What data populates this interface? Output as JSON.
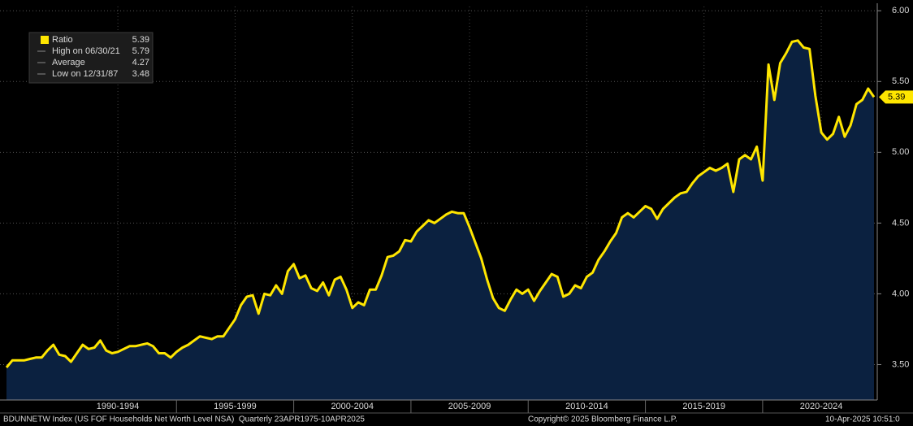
{
  "chart_data": {
    "type": "area",
    "series": [
      {
        "name": "Ratio",
        "color": "#ffe600",
        "values": [
          3.48,
          3.53,
          3.53,
          3.53,
          3.54,
          3.55,
          3.55,
          3.6,
          3.64,
          3.57,
          3.56,
          3.52,
          3.58,
          3.64,
          3.61,
          3.62,
          3.67,
          3.6,
          3.58,
          3.59,
          3.61,
          3.63,
          3.63,
          3.64,
          3.65,
          3.63,
          3.58,
          3.58,
          3.55,
          3.59,
          3.62,
          3.64,
          3.67,
          3.7,
          3.69,
          3.68,
          3.7,
          3.7,
          3.76,
          3.82,
          3.92,
          3.98,
          3.99,
          3.86,
          4.0,
          3.99,
          4.06,
          4.0,
          4.16,
          4.21,
          4.11,
          4.13,
          4.04,
          4.02,
          4.08,
          3.99,
          4.1,
          4.12,
          4.03,
          3.9,
          3.94,
          3.92,
          4.03,
          4.03,
          4.13,
          4.26,
          4.27,
          4.3,
          4.38,
          4.37,
          4.44,
          4.48,
          4.52,
          4.5,
          4.53,
          4.56,
          4.58,
          4.57,
          4.57,
          4.47,
          4.36,
          4.25,
          4.1,
          3.97,
          3.9,
          3.88,
          3.96,
          4.03,
          4.0,
          4.03,
          3.95,
          4.02,
          4.08,
          4.14,
          4.12,
          3.98,
          4.0,
          4.06,
          4.04,
          4.12,
          4.15,
          4.24,
          4.3,
          4.37,
          4.43,
          4.54,
          4.57,
          4.54,
          4.58,
          4.62,
          4.6,
          4.53,
          4.6,
          4.64,
          4.68,
          4.71,
          4.72,
          4.78,
          4.83,
          4.86,
          4.89,
          4.87,
          4.89,
          4.92,
          4.72,
          4.95,
          4.98,
          4.95,
          5.04,
          4.8,
          5.62,
          5.37,
          5.63,
          5.7,
          5.78,
          5.79,
          5.74,
          5.73,
          5.4,
          5.14,
          5.09,
          5.13,
          5.25,
          5.11,
          5.19,
          5.34,
          5.37,
          5.45,
          5.39
        ]
      }
    ],
    "x": [
      1987.75,
      1988,
      1988.25,
      1988.5,
      1988.75,
      1989,
      1989.25,
      1989.5,
      1989.75,
      1990,
      1990.25,
      1990.5,
      1990.75,
      1991,
      1991.25,
      1991.5,
      1991.75,
      1992,
      1992.25,
      1992.5,
      1992.75,
      1993,
      1993.25,
      1993.5,
      1993.75,
      1994,
      1994.25,
      1994.5,
      1994.75,
      1995,
      1995.25,
      1995.5,
      1995.75,
      1996,
      1996.25,
      1996.5,
      1996.75,
      1997,
      1997.25,
      1997.5,
      1997.75,
      1998,
      1998.25,
      1998.5,
      1998.75,
      1999,
      1999.25,
      1999.5,
      1999.75,
      2000,
      2000.25,
      2000.5,
      2000.75,
      2001,
      2001.25,
      2001.5,
      2001.75,
      2002,
      2002.25,
      2002.5,
      2002.75,
      2003,
      2003.25,
      2003.5,
      2003.75,
      2004,
      2004.25,
      2004.5,
      2004.75,
      2005,
      2005.25,
      2005.5,
      2005.75,
      2006,
      2006.25,
      2006.5,
      2006.75,
      2007,
      2007.25,
      2007.5,
      2007.75,
      2008,
      2008.25,
      2008.5,
      2008.75,
      2009,
      2009.25,
      2009.5,
      2009.75,
      2010,
      2010.25,
      2010.5,
      2010.75,
      2011,
      2011.25,
      2011.5,
      2011.75,
      2012,
      2012.25,
      2012.5,
      2012.75,
      2013,
      2013.25,
      2013.5,
      2013.75,
      2014,
      2014.25,
      2014.5,
      2014.75,
      2015,
      2015.25,
      2015.5,
      2015.75,
      2016,
      2016.25,
      2016.5,
      2016.75,
      2017,
      2017.25,
      2017.5,
      2017.75,
      2018,
      2018.25,
      2018.5,
      2018.75,
      2019,
      2019.25,
      2019.5,
      2019.75,
      2020,
      2020.25,
      2020.5,
      2020.75,
      2021,
      2021.25,
      2021.5,
      2021.75,
      2022,
      2022.25,
      2022.5,
      2022.75,
      2023,
      2023.25,
      2023.5,
      2023.75,
      2024,
      2024.25,
      2024.5,
      2024.75
    ],
    "xlim": [
      1987.75,
      2024.75
    ],
    "xticks": [
      {
        "value": 1992.5,
        "label": "1990-1994"
      },
      {
        "value": 1997.5,
        "label": "1995-1999"
      },
      {
        "value": 2002.5,
        "label": "2000-2004"
      },
      {
        "value": 2007.5,
        "label": "2005-2009"
      },
      {
        "value": 2012.5,
        "label": "2010-2014"
      },
      {
        "value": 2017.5,
        "label": "2015-2019"
      },
      {
        "value": 2022.5,
        "label": "2020-2024"
      }
    ],
    "ylim": [
      3.25,
      6.03
    ],
    "yticks": [
      {
        "value": 3.5,
        "label": "3.50"
      },
      {
        "value": 4.0,
        "label": "4.00"
      },
      {
        "value": 4.5,
        "label": "4.50"
      },
      {
        "value": 5.0,
        "label": "5.00"
      },
      {
        "value": 5.5,
        "label": "5.50"
      },
      {
        "value": 6.0,
        "label": "6.00"
      }
    ],
    "grid": true,
    "fill_color": "#0b2140",
    "legend": [
      {
        "label": "Ratio",
        "value": 5.39
      },
      {
        "label": "High on 06/30/21",
        "value": 5.79
      },
      {
        "label": "Average",
        "value": 4.27
      },
      {
        "label": "Low on 12/31/87",
        "value": 3.48
      }
    ],
    "footer": {
      "source": "BDUNNETW Index (US FOF Households Net Worth Level NSA)  Quarterly 23APR1975-10APR2025",
      "copyright": "Copyright© 2025 Bloomberg Finance L.P.",
      "timestamp": "10-Apr-2025 10:51:0"
    }
  }
}
